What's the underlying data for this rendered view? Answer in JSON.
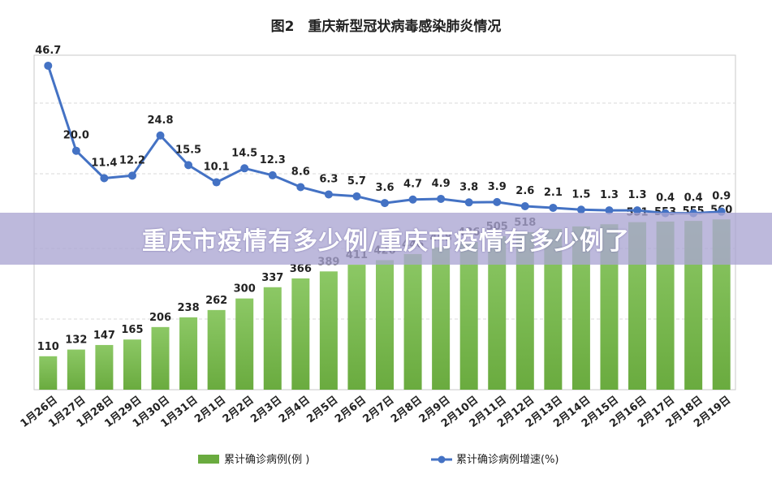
{
  "title": "图2　重庆新型冠状病毒感染肺炎情况",
  "banner_text": "重庆市疫情有多少例/重庆市疫情有多少例了",
  "colors": {
    "bar": "#6aab3f",
    "bar_top": "#8cc865",
    "line": "#4472c4",
    "grid": "#d9d9d9",
    "frame": "#c8c8c8"
  },
  "chart_data": {
    "type": "bar",
    "categories": [
      "1月26日",
      "1月27日",
      "1月28日",
      "1月29日",
      "1月30日",
      "1月31日",
      "2月1日",
      "2月2日",
      "2月3日",
      "2月4日",
      "2月5日",
      "2月6日",
      "2月7日",
      "2月8日",
      "2月9日",
      "2月10日",
      "2月11日",
      "2月12日",
      "2月13日",
      "2月14日",
      "2月15日",
      "2月16日",
      "2月17日",
      "2月18日",
      "2月19日"
    ],
    "series": [
      {
        "name": "累计确诊病例(例 )",
        "type": "bar",
        "values": [
          110,
          132,
          147,
          165,
          206,
          238,
          262,
          300,
          337,
          366,
          389,
          411,
          426,
          446,
          468,
          486,
          505,
          518,
          529,
          537,
          544,
          551,
          553,
          555,
          560
        ],
        "labels": [
          "110",
          "132",
          "147",
          "165",
          "206",
          "238",
          "262",
          "300",
          "337",
          "366",
          "389",
          "411",
          "426",
          "446",
          "468",
          "486",
          "505",
          "518",
          "",
          "",
          "",
          "551",
          "553",
          "555",
          "560"
        ]
      },
      {
        "name": "累计确诊病例增速(%)",
        "type": "line",
        "values": [
          46.7,
          20.0,
          11.4,
          12.2,
          24.8,
          15.5,
          10.1,
          14.5,
          12.3,
          8.6,
          6.3,
          5.7,
          3.6,
          4.7,
          4.9,
          3.8,
          3.9,
          2.6,
          2.1,
          1.5,
          1.3,
          1.3,
          0.4,
          0.4,
          0.9
        ],
        "labels": [
          "46.7",
          "20.0",
          "11.4",
          "12.2",
          "24.8",
          "15.5",
          "10.1",
          "14.5",
          "12.3",
          "8.6",
          "6.3",
          "5.7",
          "3.6",
          "4.7",
          "4.9",
          "3.8",
          "3.9",
          "2.6",
          "2.1",
          "1.5",
          "1.3",
          "1.3",
          "0.4",
          "0.4",
          "0.9"
        ]
      }
    ],
    "bar_ylim": [
      0,
      1100
    ],
    "line_ylim": [
      -55,
      50
    ],
    "grid": true,
    "legend_position": "bottom"
  }
}
